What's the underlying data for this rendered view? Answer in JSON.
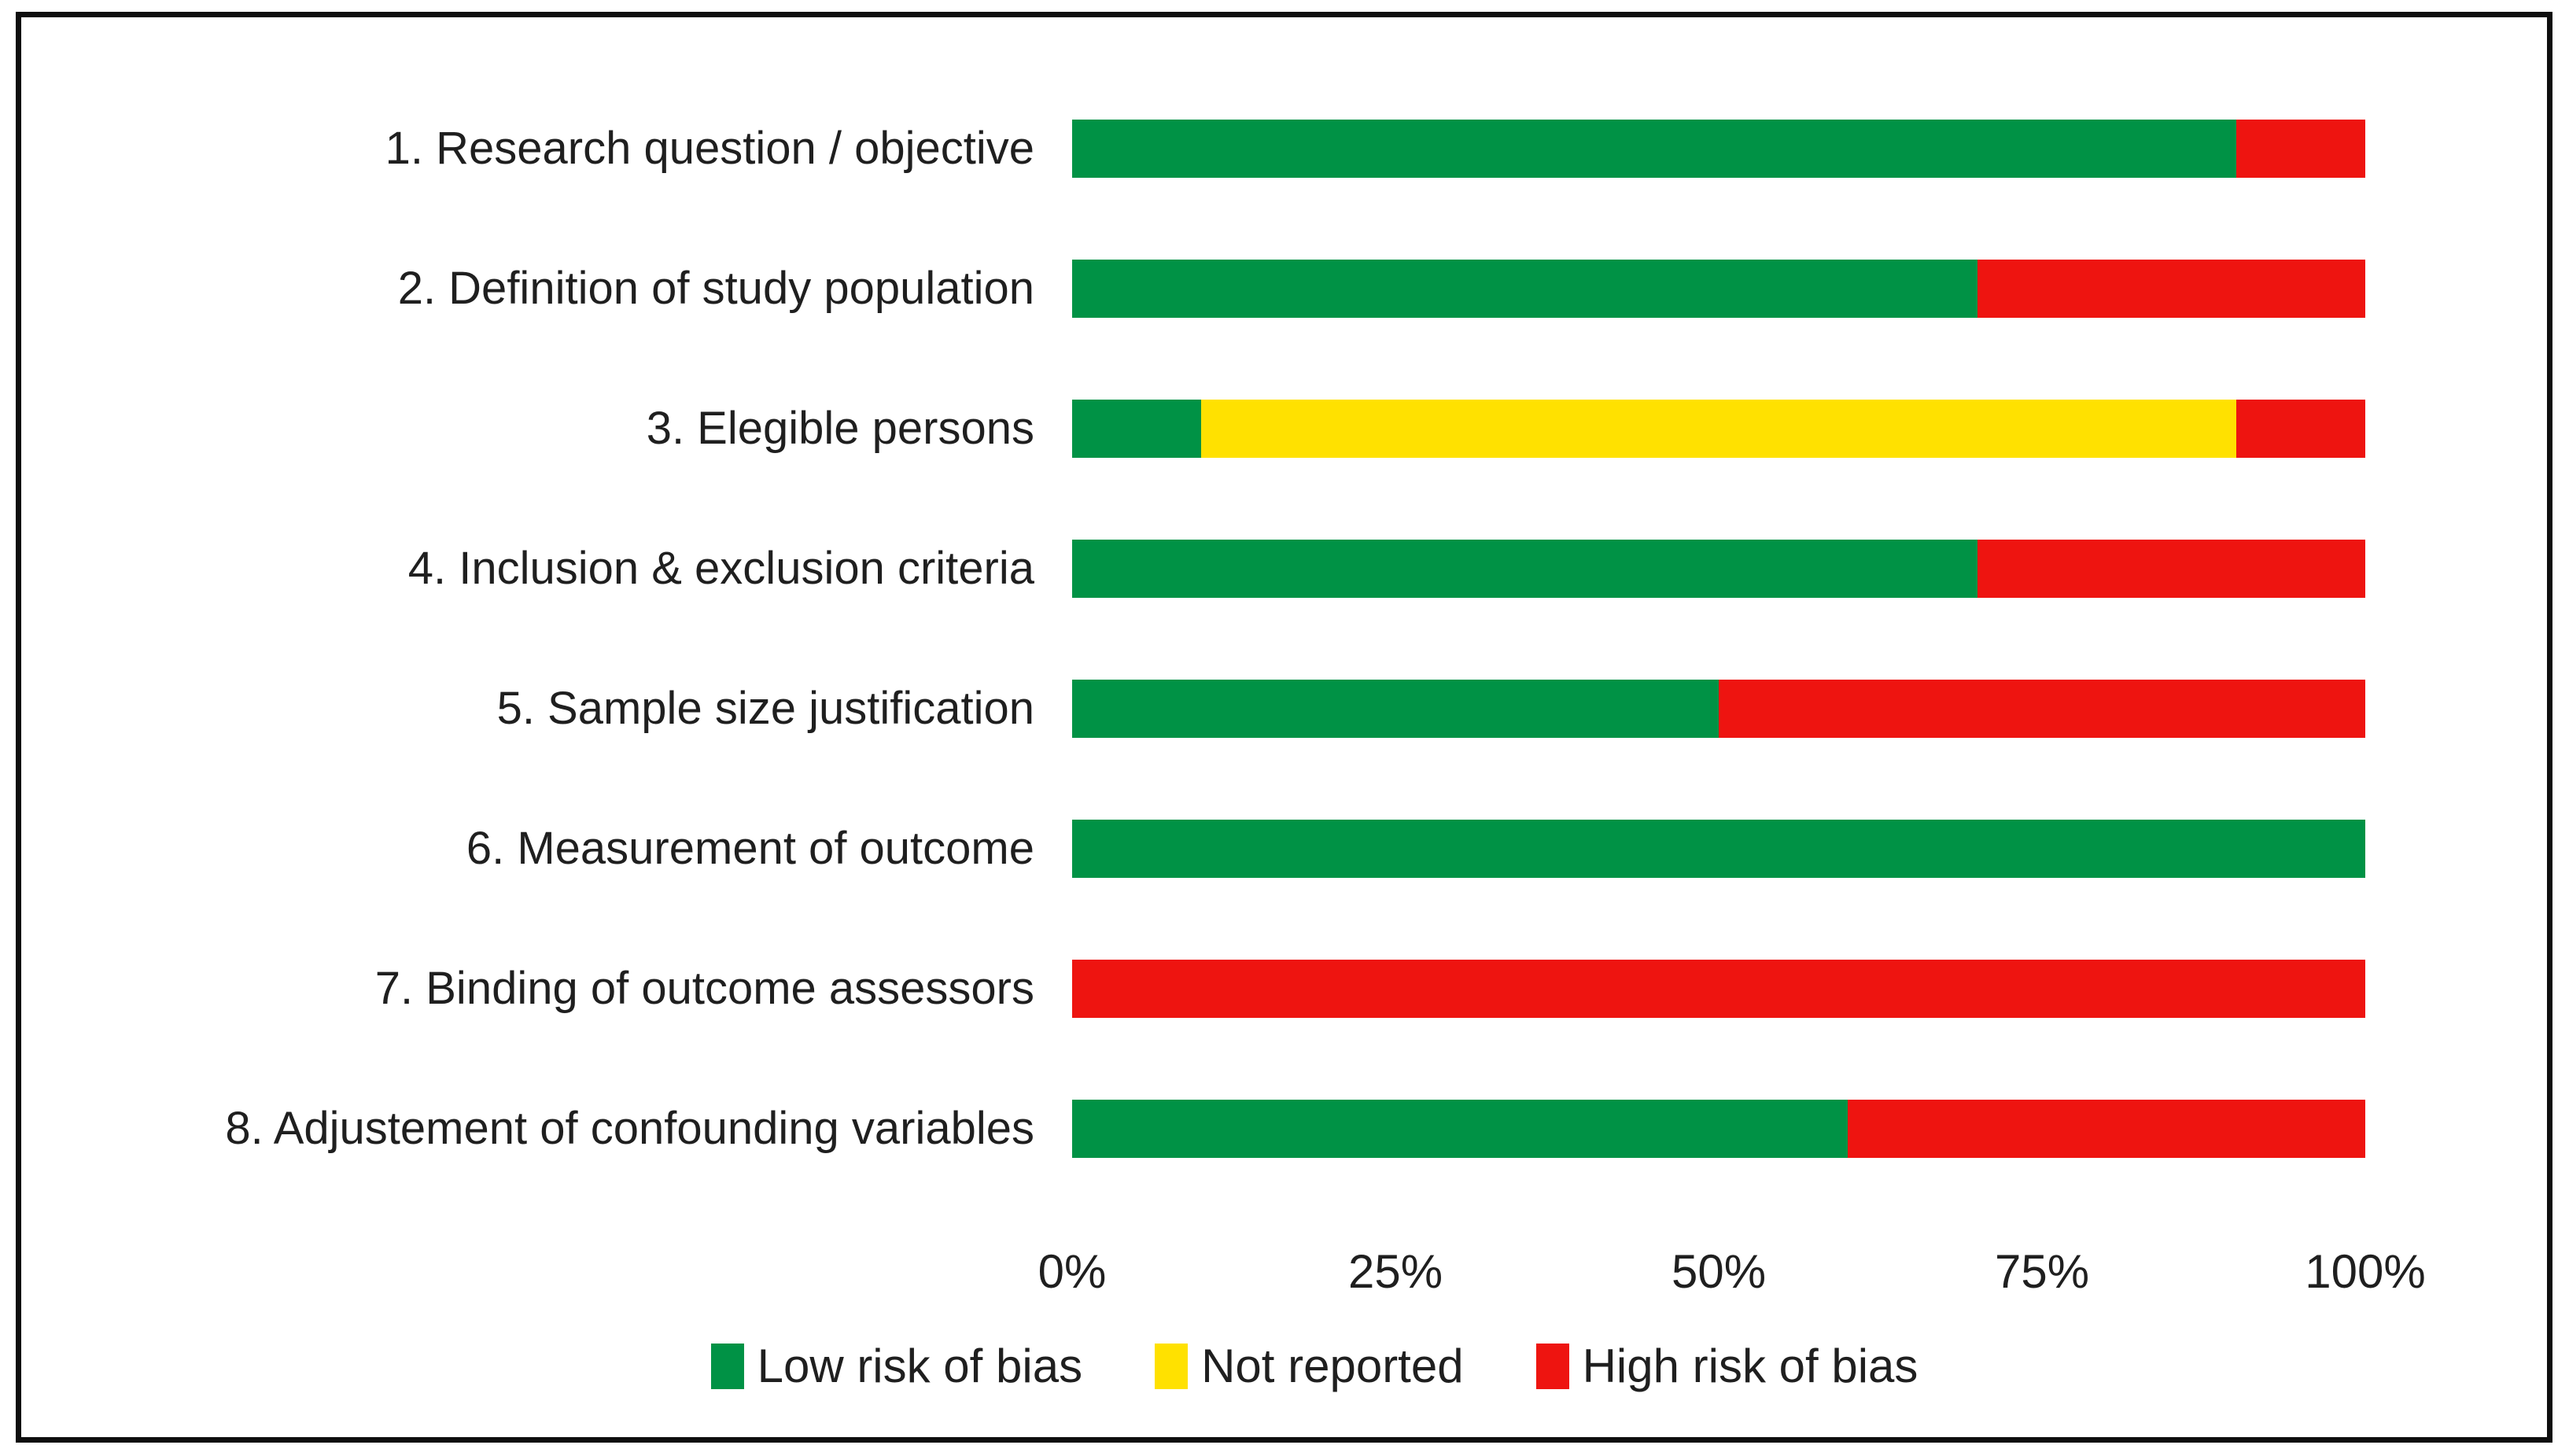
{
  "figure": {
    "background_color": "#ffffff",
    "border_color": "#0e0e0e"
  },
  "chart_data": {
    "type": "bar",
    "orientation": "horizontal",
    "stacked": true,
    "unit": "percent",
    "grid": false,
    "legend_position": "bottom",
    "categories": [
      "1. Research question / objective",
      "2. Definition of study population",
      "3. Elegible persons",
      "4. Inclusion & exclusion criteria",
      "5. Sample size justification",
      "6. Measurement of outcome",
      "7. Binding of outcome assessors",
      "8. Adjustement of confounding variables"
    ],
    "series": [
      {
        "key": "low-risk",
        "name": "Low risk of bias",
        "color": "#009245",
        "values": [
          90,
          70,
          10,
          70,
          50,
          100,
          0,
          60
        ]
      },
      {
        "key": "not-reported",
        "name": "Not reported",
        "color": "#ffe100",
        "values": [
          0,
          0,
          80,
          0,
          0,
          0,
          0,
          0
        ]
      },
      {
        "key": "high-risk",
        "name": "High risk of bias",
        "color": "#ee1410",
        "values": [
          10,
          30,
          10,
          30,
          50,
          0,
          100,
          40
        ]
      }
    ],
    "x_axis": {
      "min": 0,
      "max": 100,
      "ticks": [
        {
          "label": "0%",
          "value": 0
        },
        {
          "label": "25%",
          "value": 25
        },
        {
          "label": "50%",
          "value": 50
        },
        {
          "label": "75%",
          "value": 75
        },
        {
          "label": "100%",
          "value": 100
        }
      ]
    }
  }
}
